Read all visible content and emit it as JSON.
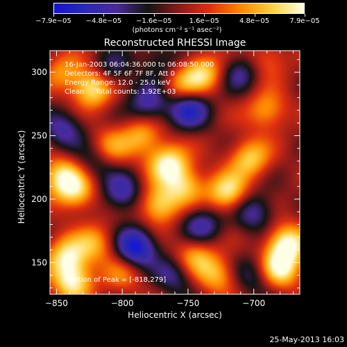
{
  "chart_data": {
    "type": "heatmap",
    "title": "Reconstructed RHESSI Image",
    "xlabel": "Heliocentric X (arcsec)",
    "ylabel": "Heliocentric Y (arcsec)",
    "xlim": [
      -855,
      -665
    ],
    "ylim": [
      125,
      317
    ],
    "x_ticks": [
      -850,
      -800,
      -750,
      -700
    ],
    "x_tick_labels": [
      "−850",
      "−800",
      "−750",
      "−700"
    ],
    "y_ticks": [
      150,
      200,
      250,
      300
    ],
    "y_tick_labels": [
      "150",
      "200",
      "250",
      "300"
    ],
    "colorbar": {
      "range": [
        -7.9e-05,
        7.9e-05
      ],
      "tick_labels": [
        "−7.9e−05",
        "−4.8e−05",
        "−1.6e−05",
        "1.6e−05",
        "4.8e−05",
        "7.9e−05"
      ],
      "unit_label": "(photons cm⁻² s⁻¹ asec⁻²)",
      "colors": [
        "#1414d8",
        "#2a2ab0",
        "#4a2a9a",
        "#141414",
        "#8a1a1a",
        "#e03010",
        "#ff8a00",
        "#ffd040",
        "#ffffe6"
      ]
    },
    "annotations": {
      "time_range": "16-Jan-2003 06:04:36.000 to 06:08:50.000",
      "detectors": "Detectors: 4F 5F 6F 7F 8F, Att 0",
      "energy": "Energy Range: 12.0 - 25.0 keV",
      "clean": "Clean     Total counts: 1.92E+03",
      "peak": "Position of Peak = [-818,279]"
    },
    "peak_position": [
      -818,
      279
    ],
    "blobs": [
      {
        "x": -822,
        "y": 288,
        "amp": 7.9e-05
      },
      {
        "x": -845,
        "y": 300,
        "amp": 4e-05
      },
      {
        "x": -846,
        "y": 218,
        "amp": 6.5e-05
      },
      {
        "x": -835,
        "y": 205,
        "amp": 5.5e-05
      },
      {
        "x": -810,
        "y": 240,
        "amp": 4.5e-05
      },
      {
        "x": -785,
        "y": 250,
        "amp": 5e-05
      },
      {
        "x": -765,
        "y": 228,
        "amp": 7.5e-05
      },
      {
        "x": -752,
        "y": 210,
        "amp": 5.5e-05
      },
      {
        "x": -772,
        "y": 195,
        "amp": 6.5e-05
      },
      {
        "x": -755,
        "y": 288,
        "amp": 5e-05
      },
      {
        "x": -738,
        "y": 300,
        "amp": 6e-05
      },
      {
        "x": -703,
        "y": 232,
        "amp": 6e-05
      },
      {
        "x": -720,
        "y": 205,
        "amp": 7e-05
      },
      {
        "x": -690,
        "y": 270,
        "amp": 5e-05
      },
      {
        "x": -675,
        "y": 165,
        "amp": 7.9e-05
      },
      {
        "x": -680,
        "y": 145,
        "amp": 7.5e-05
      },
      {
        "x": -690,
        "y": 310,
        "amp": 3.5e-05
      },
      {
        "x": -842,
        "y": 155,
        "amp": 6.5e-05
      },
      {
        "x": -838,
        "y": 135,
        "amp": 7e-05
      },
      {
        "x": -820,
        "y": 165,
        "amp": 4.5e-05
      },
      {
        "x": -745,
        "y": 155,
        "amp": 5e-05
      },
      {
        "x": -728,
        "y": 140,
        "amp": 5e-05
      },
      {
        "x": -800,
        "y": 140,
        "amp": 3.5e-05
      },
      {
        "x": -790,
        "y": 162,
        "amp": -7.9e-05
      },
      {
        "x": -750,
        "y": 272,
        "amp": -7e-05
      },
      {
        "x": -780,
        "y": 275,
        "amp": -5e-05
      },
      {
        "x": -800,
        "y": 205,
        "amp": -5e-05
      },
      {
        "x": -740,
        "y": 180,
        "amp": -5e-05
      },
      {
        "x": -760,
        "y": 140,
        "amp": -4e-05
      },
      {
        "x": -810,
        "y": 300,
        "amp": -4e-05
      },
      {
        "x": -845,
        "y": 255,
        "amp": -4.5e-05
      },
      {
        "x": -710,
        "y": 300,
        "amp": -4e-05
      },
      {
        "x": -700,
        "y": 190,
        "amp": -4.5e-05
      },
      {
        "x": -700,
        "y": 140,
        "amp": -3.5e-05
      },
      {
        "x": -820,
        "y": 230,
        "amp": -3.5e-05
      },
      {
        "x": -770,
        "y": 310,
        "amp": -3e-05
      }
    ]
  },
  "footer": {
    "timestamp": "25-May-2013 16:03"
  }
}
